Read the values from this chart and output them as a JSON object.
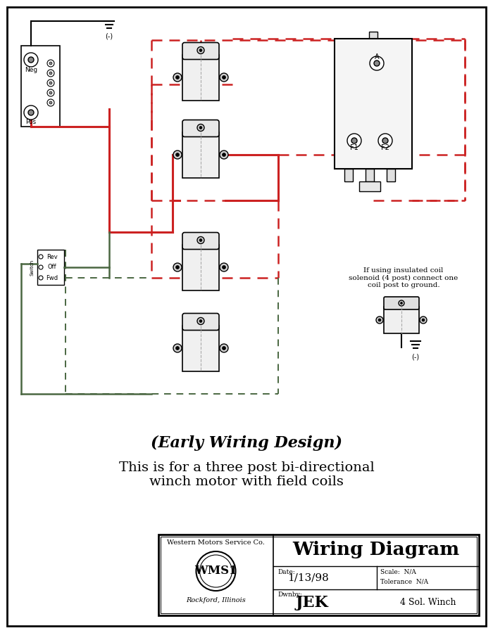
{
  "bg_color": "#ffffff",
  "border_color": "#000000",
  "red": "#cc2222",
  "green": "#4a6741",
  "title_italic": "(Early Wiring Design)",
  "title_normal": "This is for a three post bi-directional\nwinch motor with field coils",
  "tb_company": "Western Motors Service Co.",
  "tb_logo": "WMS1",
  "tb_location": "Rockford, Illinois",
  "tb_title": "Wiring Diagram",
  "tb_date_label": "Date:",
  "tb_date": "1/13/98",
  "tb_scale_label": "Scale:",
  "tb_scale": "N/A",
  "tb_tolerance_label": "Tolerance",
  "tb_tolerance": "N/A",
  "tb_dwnby_label": "Dwnby:",
  "tb_dwnby": "JEK",
  "tb_desc": "4 Sol. Winch",
  "note_text": "If using insulated coil\nsolenoid (4 post) connect one\ncoil post to ground.",
  "fig_width": 7.0,
  "fig_height": 9.0
}
